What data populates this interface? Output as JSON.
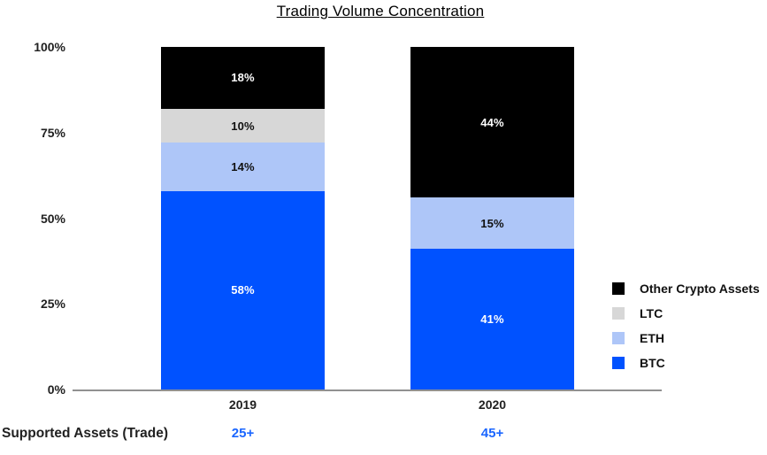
{
  "title": "Trading Volume Concentration",
  "chart_data": {
    "type": "bar",
    "stacked": true,
    "title": "Trading Volume Concentration",
    "categories": [
      "2019",
      "2020"
    ],
    "series": [
      {
        "name": "BTC",
        "values": [
          58,
          41
        ],
        "color": "#0052ff",
        "label_color": "#ffffff"
      },
      {
        "name": "ETH",
        "values": [
          14,
          15
        ],
        "color": "#aec6f8",
        "label_color": "#111111"
      },
      {
        "name": "LTC",
        "values": [
          10,
          0
        ],
        "color": "#d7d7d7",
        "label_color": "#111111"
      },
      {
        "name": "Other Crypto Assets",
        "values": [
          18,
          44
        ],
        "color": "#000000",
        "label_color": "#ffffff"
      }
    ],
    "value_suffix": "%",
    "ylim": [
      0,
      100
    ],
    "yticks": [
      "100%",
      "75%",
      "50%",
      "25%",
      "0%"
    ],
    "grid": false,
    "legend_position": "right",
    "legend": [
      {
        "label": "Other Crypto Assets",
        "color": "#000000"
      },
      {
        "label": "LTC",
        "color": "#d7d7d7"
      },
      {
        "label": "ETH",
        "color": "#aec6f8"
      },
      {
        "label": "BTC",
        "color": "#0052ff"
      }
    ]
  },
  "footer": {
    "label": "Supported Assets (Trade)",
    "values": [
      "25+",
      "45+"
    ],
    "value_color": "#1a66ff"
  }
}
